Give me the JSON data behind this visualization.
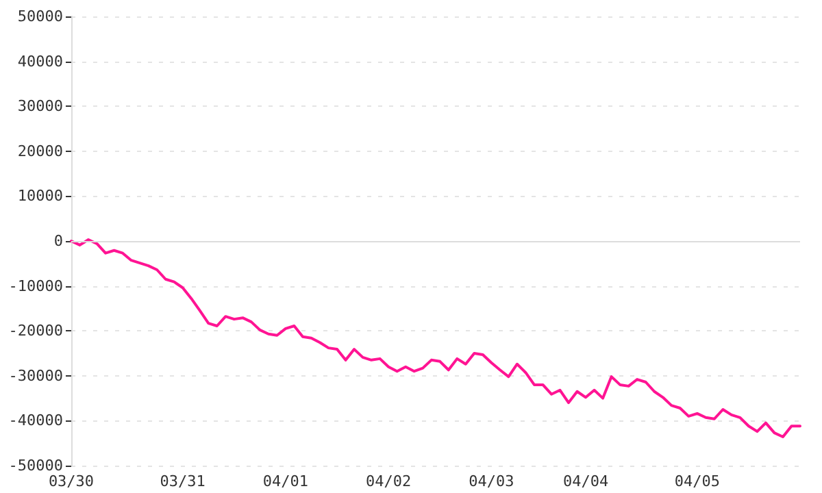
{
  "chart_data": {
    "type": "line",
    "categories": [
      "03/30",
      null,
      null,
      null,
      null,
      null,
      null,
      null,
      null,
      null,
      null,
      null,
      null,
      "03/31",
      null,
      null,
      null,
      null,
      null,
      null,
      null,
      null,
      null,
      null,
      null,
      "04/01",
      null,
      null,
      null,
      null,
      null,
      null,
      null,
      null,
      null,
      null,
      null,
      "04/02",
      null,
      null,
      null,
      null,
      null,
      null,
      null,
      null,
      null,
      null,
      null,
      "04/03",
      null,
      null,
      null,
      null,
      null,
      null,
      null,
      null,
      null,
      null,
      "04/04",
      null,
      null,
      null,
      null,
      null,
      null,
      null,
      null,
      null,
      null,
      null,
      null,
      "04/05",
      null,
      null,
      null,
      null,
      null,
      null,
      null,
      null,
      null,
      null,
      null,
      null
    ],
    "series": [
      {
        "color": "#ff1493",
        "values": [
          0,
          -900,
          300,
          -600,
          -2700,
          -2100,
          -2700,
          -4300,
          -4900,
          -5500,
          -6400,
          -8500,
          -9100,
          -10400,
          -12800,
          -15500,
          -18300,
          -18900,
          -16800,
          -17400,
          -17100,
          -18000,
          -19800,
          -20700,
          -21000,
          -19500,
          -18900,
          -21300,
          -21600,
          -22600,
          -23800,
          -24100,
          -26500,
          -24100,
          -25900,
          -26500,
          -26200,
          -28000,
          -29000,
          -28000,
          -29000,
          -28300,
          -26500,
          -26800,
          -28700,
          -26200,
          -27400,
          -25000,
          -25300,
          -27100,
          -28700,
          -30200,
          -27400,
          -29300,
          -32000,
          -32000,
          -34100,
          -33200,
          -36000,
          -33500,
          -34800,
          -33200,
          -35000,
          -30200,
          -32000,
          -32300,
          -30800,
          -31400,
          -33500,
          -34800,
          -36600,
          -37200,
          -39000,
          -38400,
          -39300,
          -39600,
          -37500,
          -38700,
          -39300,
          -41200,
          -42400,
          -40500,
          -42700,
          -43600,
          -41200,
          -41200
        ]
      }
    ],
    "ylim": [
      -50000,
      50000
    ],
    "yticks": [
      -50000,
      -40000,
      -30000,
      -20000,
      -10000,
      0,
      10000,
      20000,
      30000,
      40000,
      50000
    ],
    "grid": "y",
    "marker": "none",
    "line_style": "solid",
    "ref_lines": [
      {
        "axis": "y",
        "value": 0,
        "color": "#dddddd"
      }
    ]
  }
}
